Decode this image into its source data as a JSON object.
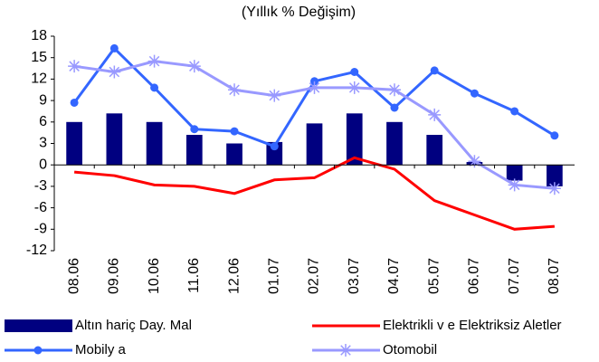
{
  "chart_data": {
    "type": "combo",
    "title": "(Yıllık % Değişim)",
    "categories": [
      "08.06",
      "09.06",
      "10.06",
      "11.06",
      "12.06",
      "01.07",
      "02.07",
      "03.07",
      "04.07",
      "05.07",
      "06.07",
      "07.07",
      "08.07"
    ],
    "series": [
      {
        "name": "Altın hariç Day. Mal",
        "type": "bar",
        "color": "#000080",
        "values": [
          6,
          7.2,
          6,
          4.2,
          3,
          3.2,
          5.8,
          7.2,
          6,
          4.2,
          0.4,
          -2.2,
          -3
        ]
      },
      {
        "name": "Elektrikli v e Elektriksiz Aletler",
        "type": "line",
        "marker": "none",
        "color": "#ff0000",
        "values": [
          -1,
          -1.5,
          -2.8,
          -3,
          -4,
          -2.1,
          -1.8,
          1,
          -0.6,
          -5,
          -7,
          -9,
          -8.6
        ]
      },
      {
        "name": "Mobily a",
        "type": "line",
        "marker": "circle",
        "color": "#3366ff",
        "values": [
          8.7,
          16.3,
          10.8,
          5,
          4.7,
          2.6,
          11.7,
          13,
          8,
          13.2,
          10,
          7.5,
          4.1
        ]
      },
      {
        "name": "Otomobil",
        "type": "line",
        "marker": "star",
        "color": "#9999ff",
        "values": [
          13.8,
          13,
          14.5,
          13.8,
          10.5,
          9.7,
          10.8,
          10.8,
          10.5,
          7,
          0.5,
          -2.8,
          -3.3
        ]
      }
    ],
    "ylim": [
      -12,
      18
    ],
    "yticks": [
      -12,
      -9,
      -6,
      -3,
      0,
      3,
      6,
      9,
      12,
      15,
      18
    ],
    "grid": false
  }
}
